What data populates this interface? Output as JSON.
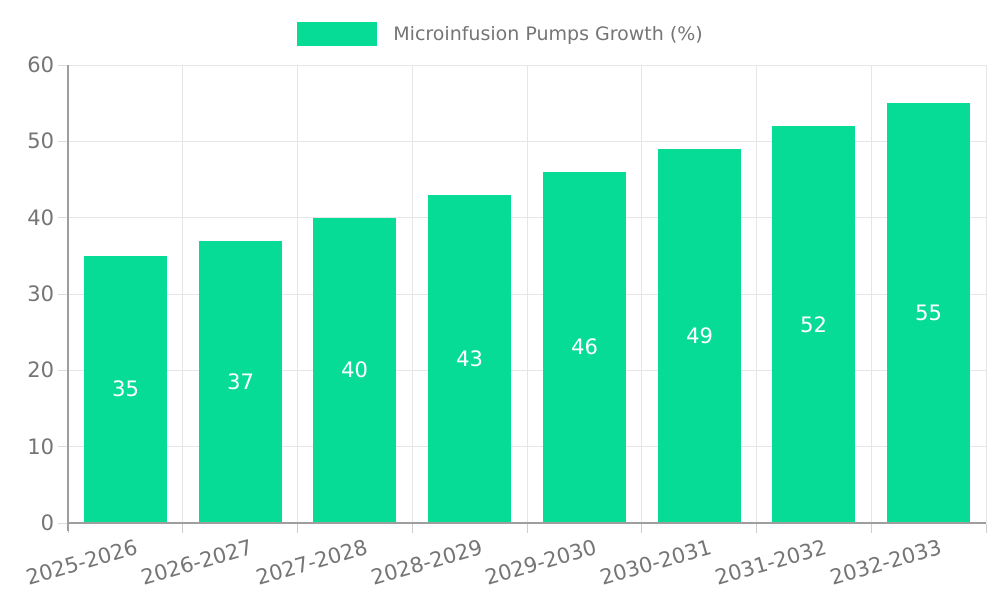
{
  "legend": {
    "label": "Microinfusion Pumps Growth (%)",
    "swatch_color": "#06dc95"
  },
  "chart_data": {
    "type": "bar",
    "title": "Microinfusion Pumps Growth (%)",
    "categories": [
      "2025-2026",
      "2026-2027",
      "2027-2028",
      "2028-2029",
      "2029-2030",
      "2030-2031",
      "2031-2032",
      "2032-2033"
    ],
    "values": [
      35,
      37,
      40,
      43,
      46,
      49,
      52,
      55
    ],
    "value_labels": [
      "35",
      "37",
      "40",
      "43",
      "46",
      "49",
      "52",
      "55"
    ],
    "xlabel": "",
    "ylabel": "",
    "ylim": [
      0,
      60
    ],
    "yticks": [
      0,
      10,
      20,
      30,
      40,
      50,
      60
    ],
    "grid": true,
    "legend_position": "top-center",
    "bar_color": "#06dc95",
    "value_label_color": "#ffffff",
    "axis_text_color": "#757575",
    "grid_color": "#e6e6e6",
    "axis_line_color": "#9e9e9e"
  }
}
